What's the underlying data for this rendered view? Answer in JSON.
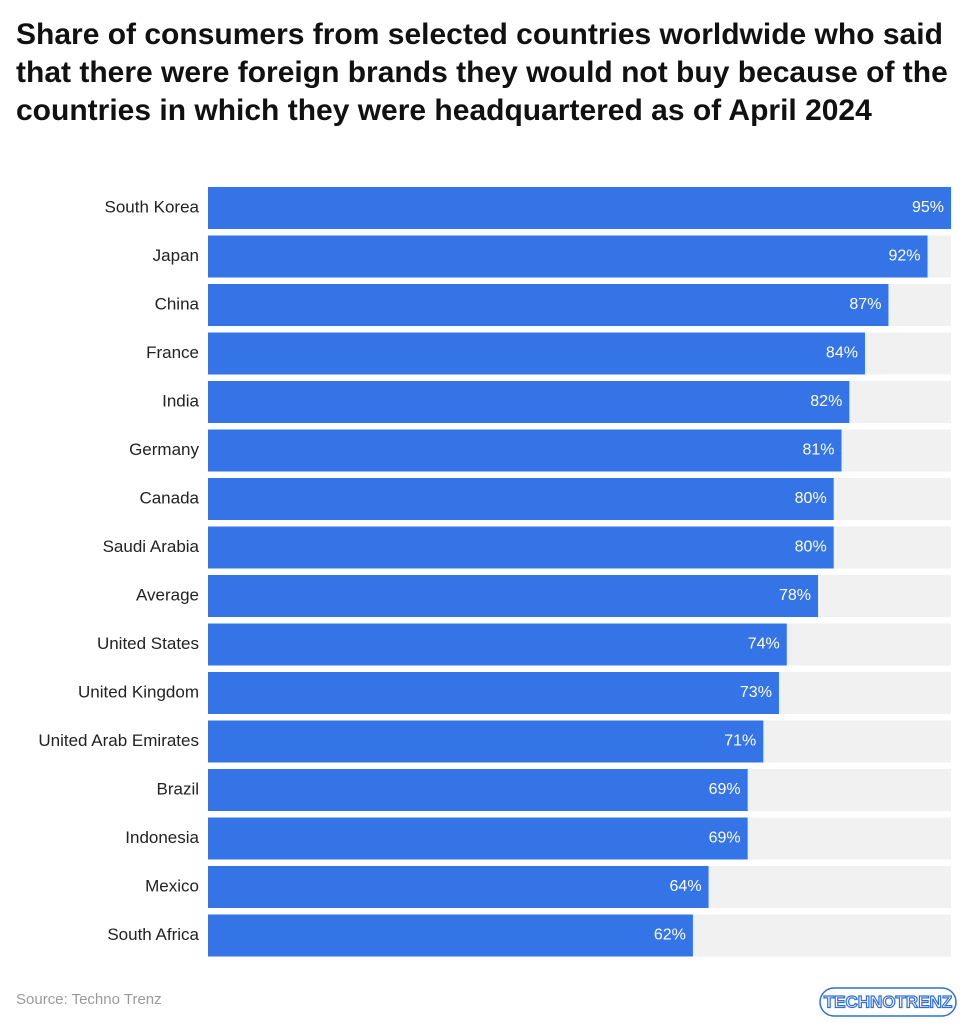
{
  "chart_data": {
    "type": "bar",
    "orientation": "horizontal",
    "title": "Share of consumers from selected countries worldwide who said that there were foreign brands they would not buy because of the countries in which they were headquartered as of April 2024",
    "categories": [
      "South Korea",
      "Japan",
      "China",
      "France",
      "India",
      "Germany",
      "Canada",
      "Saudi Arabia",
      "Average",
      "United States",
      "United Kingdom",
      "United Arab Emirates",
      "Brazil",
      "Indonesia",
      "Mexico",
      "South Africa"
    ],
    "values": [
      95,
      92,
      87,
      84,
      82,
      81,
      80,
      80,
      78,
      74,
      73,
      71,
      69,
      69,
      64,
      62
    ],
    "value_labels": [
      "95%",
      "92%",
      "87%",
      "84%",
      "82%",
      "81%",
      "80%",
      "80%",
      "78%",
      "74%",
      "73%",
      "71%",
      "69%",
      "69%",
      "64%",
      "62%"
    ],
    "color": "#3474e6",
    "xlim": [
      0,
      95
    ],
    "source": "Source: Techno Trenz",
    "logo": "TECHNOTRENZ"
  }
}
